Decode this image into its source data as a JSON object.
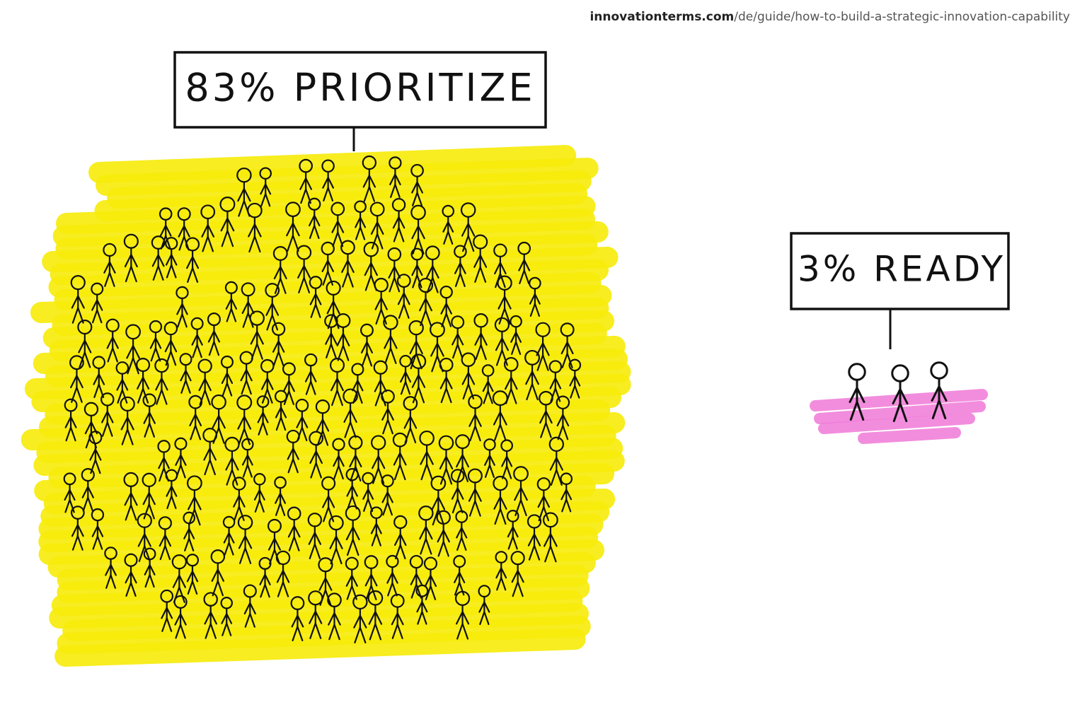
{
  "source": {
    "domain": "innovationterms.com",
    "path": "/de/guide/how-to-build-a-strategic-innovation-capability"
  },
  "groups": [
    {
      "label": "83% PRIORITIZE"
    },
    {
      "label": "3% READY"
    }
  ]
}
